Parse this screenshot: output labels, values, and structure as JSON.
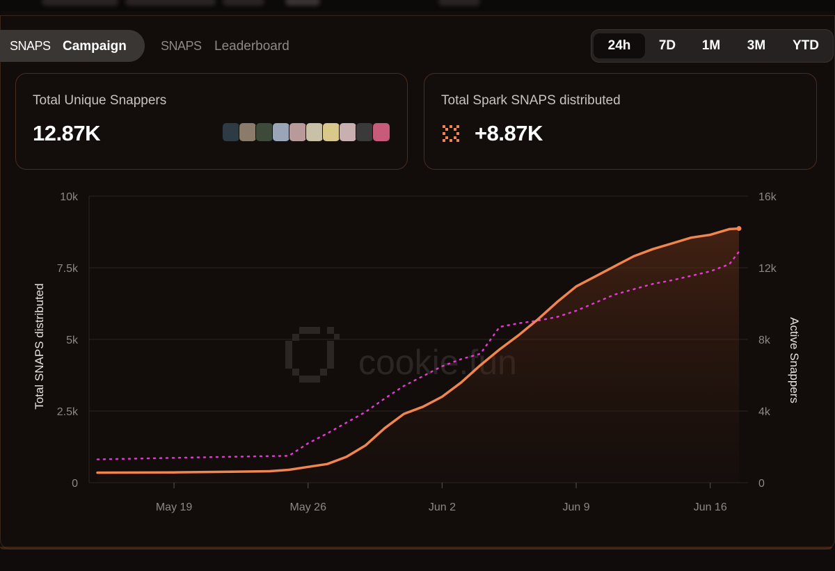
{
  "tabs": {
    "campaign": {
      "prefix": "SNAPS",
      "label": "Campaign"
    },
    "leaderboard": {
      "prefix": "SNAPS",
      "label": "Leaderboard"
    }
  },
  "time_ranges": [
    "24h",
    "7D",
    "1M",
    "3M",
    "YTD"
  ],
  "selected_range": "24h",
  "cards": {
    "snappers": {
      "title": "Total Unique Snappers",
      "value": "12.87K",
      "avatar_colors": [
        "#2e3a44",
        "#8b7b6a",
        "#3d4a3a",
        "#9aa6b8",
        "#b89a9a",
        "#c9c0a8",
        "#d8c88a",
        "#c8b0b0",
        "#3a3a3a",
        "#c85a7a"
      ]
    },
    "spark": {
      "title": "Total Spark SNAPS distributed",
      "value": "+8.87K",
      "icon": "spark-icon"
    }
  },
  "colors": {
    "accent": "#f0854f",
    "active_line": "#e23ad0",
    "grid": "#2a2522"
  },
  "watermark": "cookie.fun",
  "chart_data": {
    "type": "line",
    "ylabel": "Total SNAPS distributed",
    "y2label": "Active Snappers",
    "ylim": [
      0,
      10000
    ],
    "y2lim": [
      0,
      16000
    ],
    "y_ticks": [
      "0",
      "2.5k",
      "5k",
      "7.5k",
      "10k"
    ],
    "y2_ticks": [
      "0",
      "4k",
      "8k",
      "12k",
      "16k"
    ],
    "x_ticks": [
      "May 19",
      "May 26",
      "Jun 2",
      "Jun 9",
      "Jun 16"
    ],
    "x_tick_days": [
      4,
      11,
      18,
      25,
      32
    ],
    "xlim": [
      0,
      33.5
    ],
    "series": [
      {
        "name": "Total SNAPS distributed",
        "axis": "left",
        "style": "solid-area",
        "x": [
          0,
          4,
          7,
          9,
          10,
          11,
          12,
          13,
          14,
          15,
          16,
          17,
          18,
          19,
          20,
          21,
          22,
          23,
          24,
          25,
          26,
          27,
          28,
          29,
          30,
          31,
          32,
          33,
          33.5
        ],
        "y": [
          350,
          360,
          380,
          400,
          450,
          550,
          650,
          900,
          1300,
          1900,
          2400,
          2650,
          3000,
          3500,
          4100,
          4650,
          5150,
          5700,
          6300,
          6850,
          7200,
          7550,
          7900,
          8150,
          8350,
          8550,
          8650,
          8850,
          8870
        ]
      },
      {
        "name": "Active Snappers",
        "axis": "right",
        "style": "dotted",
        "x": [
          0,
          7,
          10,
          11,
          12,
          13,
          14,
          15,
          16,
          17,
          18,
          19,
          19.5,
          20,
          21,
          22,
          23,
          24,
          25,
          26,
          27,
          28,
          29,
          30,
          31,
          32,
          33,
          33.5
        ],
        "y": [
          1300,
          1450,
          1500,
          2200,
          2750,
          3350,
          3950,
          4700,
          5400,
          5950,
          6500,
          6900,
          7050,
          7200,
          8700,
          8900,
          9050,
          9250,
          9600,
          10050,
          10500,
          10800,
          11100,
          11300,
          11550,
          11800,
          12200,
          12900
        ]
      }
    ]
  }
}
